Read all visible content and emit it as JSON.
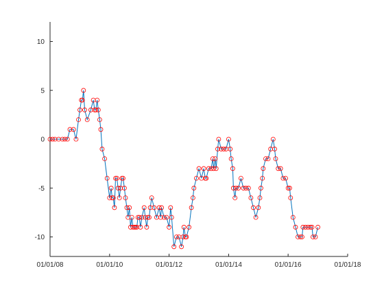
{
  "chart_data": {
    "type": "line",
    "title": "",
    "xlabel": "",
    "ylabel": "",
    "xlim": [
      "2008-01-01",
      "2018-01-01"
    ],
    "ylim": [
      -12,
      12
    ],
    "grid": false,
    "x_ticks": [
      "01/01/08",
      "01/01/10",
      "01/01/12",
      "01/01/14",
      "01/01/16",
      "01/01/18"
    ],
    "y_ticks": [
      -10,
      -5,
      0,
      5,
      10
    ],
    "colors": {
      "line": "#0072BD",
      "marker": "#FF0000",
      "axis": "#262626"
    },
    "marker": "circle",
    "series": [
      {
        "x": [
          "2008-01-01",
          "2008-02-01",
          "2008-03-01",
          "2008-04-15",
          "2008-06-01",
          "2008-07-01",
          "2008-08-01",
          "2008-09-01",
          "2008-10-15",
          "2008-11-15",
          "2008-12-15",
          "2009-01-01",
          "2009-01-20",
          "2009-02-01",
          "2009-02-15",
          "2009-03-01",
          "2009-04-01",
          "2009-05-15",
          "2009-06-15",
          "2009-07-01",
          "2009-07-15",
          "2009-08-01",
          "2009-08-15",
          "2009-09-01",
          "2009-09-15",
          "2009-10-01",
          "2009-11-01",
          "2009-12-01",
          "2010-01-01",
          "2010-01-20",
          "2010-02-01",
          "2010-02-15",
          "2010-03-01",
          "2010-03-15",
          "2010-04-01",
          "2010-04-15",
          "2010-05-01",
          "2010-05-15",
          "2010-06-01",
          "2010-06-15",
          "2010-07-01",
          "2010-07-15",
          "2010-08-01",
          "2010-08-15",
          "2010-09-01",
          "2010-09-15",
          "2010-10-01",
          "2010-10-15",
          "2010-11-01",
          "2010-11-15",
          "2010-12-01",
          "2010-12-15",
          "2011-01-01",
          "2011-01-15",
          "2011-02-01",
          "2011-03-01",
          "2011-03-15",
          "2011-04-01",
          "2011-04-15",
          "2011-05-01",
          "2011-05-15",
          "2011-06-01",
          "2011-07-01",
          "2011-08-01",
          "2011-09-01",
          "2011-09-20",
          "2011-10-01",
          "2011-11-01",
          "2011-12-01",
          "2012-01-01",
          "2012-01-20",
          "2012-02-01",
          "2012-03-01",
          "2012-04-01",
          "2012-05-01",
          "2012-06-01",
          "2012-06-20",
          "2012-07-01",
          "2012-07-20",
          "2012-08-01",
          "2012-09-01",
          "2012-10-01",
          "2012-10-20",
          "2012-11-01",
          "2012-12-01",
          "2013-01-01",
          "2013-02-01",
          "2013-03-01",
          "2013-03-20",
          "2013-04-01",
          "2013-05-01",
          "2013-06-01",
          "2013-06-20",
          "2013-07-01",
          "2013-07-20",
          "2013-08-01",
          "2013-08-20",
          "2013-09-01",
          "2013-10-01",
          "2013-11-01",
          "2013-12-01",
          "2014-01-01",
          "2014-01-20",
          "2014-02-01",
          "2014-02-20",
          "2014-03-01",
          "2014-03-20",
          "2014-04-01",
          "2014-05-01",
          "2014-06-01",
          "2014-07-01",
          "2014-08-01",
          "2014-09-01",
          "2014-10-01",
          "2014-11-01",
          "2014-12-01",
          "2015-01-01",
          "2015-01-20",
          "2015-02-01",
          "2015-02-20",
          "2015-03-01",
          "2015-04-01",
          "2015-05-01",
          "2015-06-01",
          "2015-07-01",
          "2015-07-20",
          "2015-08-01",
          "2015-09-01",
          "2015-10-01",
          "2015-11-01",
          "2015-12-01",
          "2016-01-01",
          "2016-01-20",
          "2016-02-01",
          "2016-03-01",
          "2016-04-01",
          "2016-05-01",
          "2016-06-01",
          "2016-06-20",
          "2016-07-01",
          "2016-08-01",
          "2016-09-01",
          "2016-10-01",
          "2016-10-20",
          "2016-11-01",
          "2016-12-01",
          "2017-01-01"
        ],
        "y": [
          0,
          0,
          0,
          0,
          0,
          0,
          0,
          1,
          1,
          0,
          2,
          3,
          4,
          4,
          5,
          3,
          2,
          3,
          4,
          3,
          3,
          4,
          3,
          2,
          1,
          -1,
          -2,
          -4,
          -6,
          -5,
          -6,
          -6,
          -7,
          -4,
          -4,
          -5,
          -6,
          -5,
          -4,
          -4,
          -5,
          -6,
          -7,
          -8,
          -7,
          -9,
          -8,
          -9,
          -9,
          -9,
          -9,
          -8,
          -8,
          -9,
          -8,
          -7,
          -8,
          -9,
          -8,
          -8,
          -7,
          -6,
          -7,
          -8,
          -7,
          -8,
          -7,
          -8,
          -8,
          -9,
          -7,
          -8,
          -11,
          -10,
          -10,
          -11,
          -10,
          -9,
          -10,
          -10,
          -9,
          -7,
          -6,
          -5,
          -4,
          -3,
          -4,
          -3,
          -4,
          -4,
          -3,
          -3,
          -2,
          -3,
          -2,
          -3,
          -1,
          0,
          -1,
          -1,
          -1,
          0,
          -1,
          -2,
          -3,
          -5,
          -6,
          -5,
          -5,
          -4,
          -5,
          -5,
          -5,
          -6,
          -7,
          -8,
          -7,
          -6,
          -5,
          -4,
          -3,
          -2,
          -2,
          -1,
          0,
          -1,
          -2,
          -3,
          -3,
          -4,
          -4,
          -5,
          -5,
          -6,
          -8,
          -9,
          -10,
          -10,
          -10,
          -9,
          -9,
          -9,
          -9,
          -9,
          -10,
          -10,
          -9
        ]
      }
    ]
  }
}
